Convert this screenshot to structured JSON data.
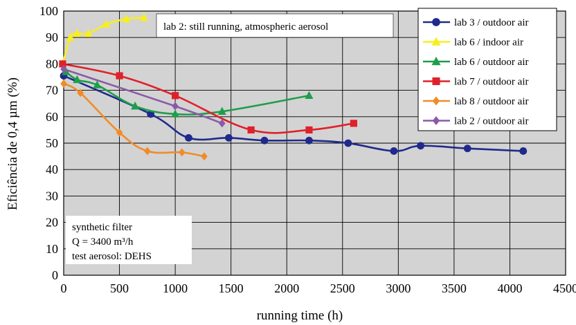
{
  "chart_data": {
    "type": "line",
    "title": "",
    "xlabel": "running time (h)",
    "ylabel": "Eficiência de 0,4 µm (%)",
    "xlim": [
      0,
      4500
    ],
    "ylim": [
      0,
      100
    ],
    "xticks": [
      0,
      500,
      1000,
      1500,
      2000,
      2500,
      3000,
      3500,
      4000,
      4500
    ],
    "yticks": [
      0,
      10,
      20,
      30,
      40,
      50,
      60,
      70,
      80,
      90,
      100
    ],
    "grid": true,
    "background": "#d3d3d3",
    "legend_position": "top-right",
    "series": [
      {
        "name": "lab 3 / outdoor air",
        "color": "#1f2a8c",
        "marker": "circle",
        "x": [
          0,
          780,
          1120,
          1480,
          1800,
          2200,
          2550,
          2960,
          3200,
          3620,
          4120
        ],
        "y": [
          75.5,
          61,
          52,
          52,
          51,
          51,
          50,
          47,
          49,
          48,
          47
        ]
      },
      {
        "name": "lab 6 / indoor air",
        "color": "#f7ef1e",
        "marker": "triangle",
        "x": [
          -10,
          60,
          120,
          220,
          380,
          560,
          720
        ],
        "y": [
          80,
          90,
          91.5,
          91.5,
          95,
          97,
          97.5
        ]
      },
      {
        "name": "lab 6 / outdoor air",
        "color": "#1e9e4a",
        "marker": "triangle",
        "x": [
          20,
          120,
          300,
          640,
          1000,
          1420,
          2200
        ],
        "y": [
          77,
          74,
          72,
          64,
          61,
          62,
          68
        ]
      },
      {
        "name": "lab 7 / outdoor air",
        "color": "#e0202a",
        "marker": "square",
        "x": [
          -10,
          500,
          1000,
          1680,
          2200,
          2600
        ],
        "y": [
          80,
          75.5,
          68,
          55,
          55,
          57.5
        ]
      },
      {
        "name": "lab 8 / outdoor air",
        "color": "#f08c28",
        "marker": "diamond",
        "x": [
          0,
          150,
          500,
          750,
          1060,
          1260
        ],
        "y": [
          72.5,
          69,
          54,
          47,
          46.5,
          45
        ]
      },
      {
        "name": "lab 2 / outdoor air",
        "color": "#8a5aa8",
        "marker": "diamond",
        "x": [
          0,
          1000,
          1420
        ],
        "y": [
          78,
          64,
          57.5
        ]
      }
    ],
    "annotations": [
      {
        "text": "lab 2: still running, atmospheric aerosol"
      },
      {
        "lines": [
          "synthetic filter",
          "Q = 3400 m³/h",
          "test aerosol: DEHS"
        ]
      }
    ]
  }
}
